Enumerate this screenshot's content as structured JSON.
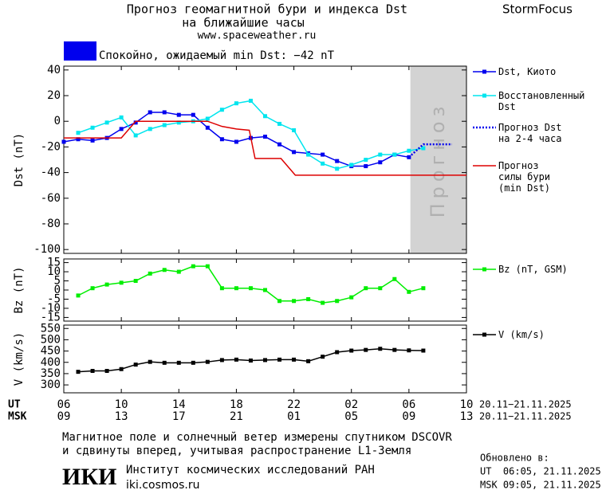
{
  "header": {
    "title": "Прогноз геомагнитной бури и индекса Dst",
    "subtitle": "на ближайшие часы",
    "url": "www.spaceweather.ru",
    "brand": "StormFocus",
    "status": "Спокойно, ожидаемый min Dst: −42 nT",
    "status_color": "#0000ee"
  },
  "chart_data": [
    {
      "type": "line",
      "ylabel": "Dst (nT)",
      "xlim": [
        0,
        28
      ],
      "ylim": [
        -103,
        43
      ],
      "yticks": [
        40,
        20,
        0,
        -20,
        -40,
        -60,
        -80,
        -100
      ],
      "shade": [
        24.1,
        28
      ],
      "shade_label": "Прогноз",
      "x": [
        0,
        1,
        2,
        3,
        4,
        5,
        6,
        7,
        8,
        9,
        10,
        11,
        12,
        13,
        14,
        15,
        16,
        17,
        18,
        19,
        20,
        21,
        22,
        23,
        24,
        25
      ],
      "series": [
        {
          "name": "Dst, Киото",
          "color": "#0000ee",
          "marker": "square",
          "values": [
            -16,
            -14,
            -15,
            -13,
            -6,
            -1,
            7,
            7,
            5,
            5,
            -5,
            -14,
            -16,
            -13,
            -12,
            -18,
            -24,
            -25,
            -26,
            -31,
            -35,
            -35,
            -32,
            -26,
            -28,
            null
          ]
        },
        {
          "name": "Восстановленный\nDst",
          "color": "#00e5ee",
          "marker": "square",
          "values": [
            null,
            -9,
            -5,
            -1,
            3,
            -11,
            -6,
            -3,
            -1,
            0,
            2,
            9,
            14,
            16,
            4,
            -2,
            -7,
            -26,
            -33,
            -37,
            -34,
            -30,
            -26,
            -26,
            -23,
            -21
          ]
        },
        {
          "name": "Прогноз Dst\nна 2-4 часа",
          "color": "#0000ee",
          "dash": "dotted",
          "x": [
            24,
            25,
            26,
            27
          ],
          "values": [
            -28,
            -18,
            -18,
            -18
          ]
        },
        {
          "name": "Прогноз\nсилы бури\n(min Dst)",
          "color": "#dd0000",
          "x": [
            0,
            4,
            5,
            10,
            11,
            12,
            12.9,
            13.3,
            15.1,
            16.1,
            28
          ],
          "values": [
            -13,
            -13,
            0,
            0,
            -4,
            -6,
            -7,
            -29,
            -29,
            -42,
            -42
          ]
        }
      ]
    },
    {
      "type": "line",
      "ylabel": "Bz (nT)",
      "xlim": [
        0,
        28
      ],
      "ylim": [
        -17,
        17
      ],
      "yticks": [
        15,
        10,
        5,
        0,
        -5,
        -10,
        -15
      ],
      "x": [
        0,
        1,
        2,
        3,
        4,
        5,
        6,
        7,
        8,
        9,
        10,
        11,
        12,
        13,
        14,
        15,
        16,
        17,
        18,
        19,
        20,
        21,
        22,
        23,
        24,
        25
      ],
      "series": [
        {
          "name": "Bz (nT, GSM)",
          "color": "#00ee00",
          "marker": "square",
          "values": [
            null,
            -3,
            1,
            3,
            4,
            5,
            9,
            11,
            10,
            13,
            13,
            1,
            1,
            1,
            0,
            -6,
            -6,
            -5,
            -7,
            -6,
            -4,
            1,
            1,
            6,
            -1,
            1
          ]
        }
      ]
    },
    {
      "type": "line",
      "ylabel": "V (km/s)",
      "xlim": [
        0,
        28
      ],
      "ylim": [
        265,
        565
      ],
      "yticks": [
        550,
        500,
        450,
        400,
        350,
        300
      ],
      "x": [
        0,
        1,
        2,
        3,
        4,
        5,
        6,
        7,
        8,
        9,
        10,
        11,
        12,
        13,
        14,
        15,
        16,
        17,
        18,
        19,
        20,
        21,
        22,
        23,
        24,
        25
      ],
      "series": [
        {
          "name": "V (km/s)",
          "color": "#000000",
          "marker": "square",
          "values": [
            null,
            358,
            362,
            362,
            370,
            390,
            402,
            398,
            398,
            398,
            402,
            410,
            412,
            408,
            410,
            412,
            412,
            405,
            425,
            445,
            452,
            455,
            460,
            455,
            453,
            452
          ]
        }
      ],
      "xtick_row_labels": [
        "UT",
        "MSK"
      ],
      "xticks": [
        {
          "value": 0,
          "label": "06"
        },
        {
          "value": 4,
          "label": "10"
        },
        {
          "value": 8,
          "label": "14"
        },
        {
          "value": 12,
          "label": "18"
        },
        {
          "value": 16,
          "label": "22"
        },
        {
          "value": 20,
          "label": "02"
        },
        {
          "value": 24,
          "label": "06"
        },
        {
          "value": 28,
          "label": "10"
        }
      ],
      "xticks_msk": [
        {
          "value": 0,
          "label": "09"
        },
        {
          "value": 4,
          "label": "13"
        },
        {
          "value": 8,
          "label": "17"
        },
        {
          "value": 12,
          "label": "21"
        },
        {
          "value": 16,
          "label": "01"
        },
        {
          "value": 20,
          "label": "05"
        },
        {
          "value": 24,
          "label": "09"
        },
        {
          "value": 28,
          "label": "13"
        }
      ],
      "date_range_ut": "20.11−21.11.2025",
      "date_range_msk": "20.11−21.11.2025"
    }
  ],
  "footer": {
    "note_line1": "Магнитное поле и солнечный ветер измерены спутником DSCOVR",
    "note_line2": "и сдвинуты вперед, учитывая распространение L1-Земля",
    "logo": "ИКИ",
    "institute": "Институт космических исследований РАН",
    "institute_url": "iki.cosmos.ru",
    "updated": "Обновлено в:",
    "updated_ut": "UT  06:05, 21.11.2025",
    "updated_msk": "MSK 09:05, 21.11.2025"
  }
}
